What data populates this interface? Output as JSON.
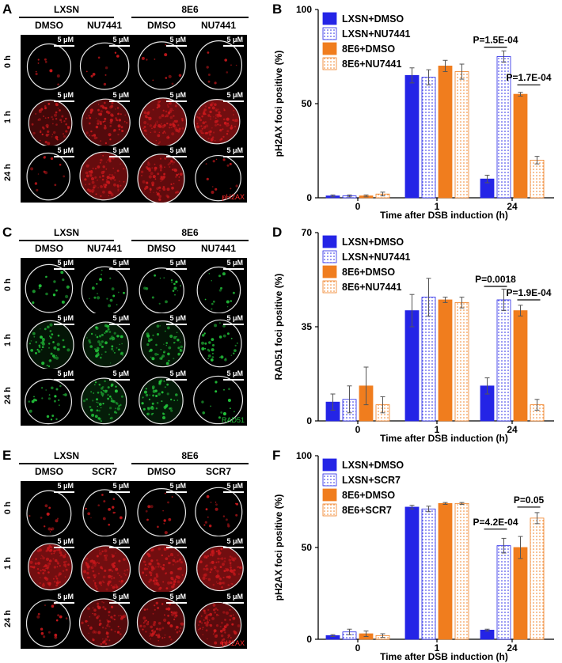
{
  "panels": [
    {
      "letter": "A",
      "groups": [
        "LXSN",
        "8E6"
      ],
      "columns": [
        "DMSO",
        "NU7441",
        "DMSO",
        "NU7441"
      ],
      "rows": [
        "0 h",
        "1 h",
        "24 h"
      ],
      "scale": "5 μM",
      "stain": "pH2AX",
      "stain_color": "#ff2a2a",
      "cell_color": "#c8181c"
    },
    {
      "letter": "C",
      "groups": [
        "LXSN",
        "8E6"
      ],
      "columns": [
        "DMSO",
        "NU7441",
        "DMSO",
        "NU7441"
      ],
      "rows": [
        "0 h",
        "1 h",
        "24 h"
      ],
      "scale": "5 μM",
      "stain": "RAD51",
      "stain_color": "#22c23a",
      "cell_color": "#22c23a"
    },
    {
      "letter": "E",
      "groups": [
        "LXSN",
        "8E6"
      ],
      "columns": [
        "DMSO",
        "SCR7",
        "DMSO",
        "SCR7"
      ],
      "rows": [
        "0 h",
        "1 h",
        "24 h"
      ],
      "scale": "5 μM",
      "stain": "pH2AX",
      "stain_color": "#ff2a2a",
      "cell_color": "#c8181c"
    }
  ],
  "chart_data": [
    {
      "letter": "B",
      "type": "bar",
      "ylabel": "pH2AX foci positive (%)",
      "xlabel": "Time after DSB induction (h)",
      "categories": [
        "0",
        "1",
        "24"
      ],
      "ylim": [
        0,
        100
      ],
      "yticks": [
        0,
        50,
        100
      ],
      "series": [
        {
          "name": "LXSN+DMSO",
          "values": [
            1,
            65,
            10
          ],
          "errors": [
            0.5,
            4,
            2
          ]
        },
        {
          "name": "LXSN+NU7441",
          "values": [
            1,
            64,
            75
          ],
          "errors": [
            0.5,
            4,
            3
          ]
        },
        {
          "name": "8E6+DMSO",
          "values": [
            1,
            70,
            55
          ],
          "errors": [
            0.5,
            3,
            1
          ]
        },
        {
          "name": "8E6+NU7441",
          "values": [
            2,
            67,
            20
          ],
          "errors": [
            1,
            4,
            2
          ]
        }
      ],
      "annotations": [
        {
          "text": "P=1.5E-04",
          "category": "24",
          "from": 0,
          "to": 1,
          "y": 80
        },
        {
          "text": "P=1.7E-04",
          "category": "24",
          "from": 2,
          "to": 3,
          "y": 60
        }
      ]
    },
    {
      "letter": "D",
      "type": "bar",
      "ylabel": "RAD51 foci positive (%)",
      "xlabel": "Time after DSB induction (h)",
      "categories": [
        "0",
        "1",
        "24"
      ],
      "ylim": [
        0,
        70
      ],
      "yticks": [
        0,
        35,
        70
      ],
      "series": [
        {
          "name": "LXSN+DMSO",
          "values": [
            7,
            41,
            13
          ],
          "errors": [
            3,
            6,
            3
          ]
        },
        {
          "name": "LXSN+NU7441",
          "values": [
            8,
            46,
            45
          ],
          "errors": [
            5,
            7,
            4
          ]
        },
        {
          "name": "8E6+DMSO",
          "values": [
            13,
            45,
            41
          ],
          "errors": [
            7,
            1,
            2
          ]
        },
        {
          "name": "8E6+NU7441",
          "values": [
            6,
            44,
            6
          ],
          "errors": [
            3,
            2,
            2
          ]
        }
      ],
      "annotations": [
        {
          "text": "P=0.0018",
          "category": "24",
          "from": 0,
          "to": 1,
          "y": 50
        },
        {
          "text": "P=1.9E-04",
          "category": "24",
          "from": 2,
          "to": 3,
          "y": 45
        }
      ]
    },
    {
      "letter": "F",
      "type": "bar",
      "ylabel": "pH2AX foci positive (%)",
      "xlabel": "Time after DSB induction (h)",
      "categories": [
        "0",
        "1",
        "24"
      ],
      "ylim": [
        0,
        100
      ],
      "yticks": [
        0,
        50,
        100
      ],
      "series": [
        {
          "name": "LXSN+DMSO",
          "values": [
            2,
            72,
            5
          ],
          "errors": [
            0.5,
            1,
            0.5
          ]
        },
        {
          "name": "LXSN+SCR7",
          "values": [
            4,
            71,
            51
          ],
          "errors": [
            1.5,
            1.5,
            4
          ]
        },
        {
          "name": "8E6+DMSO",
          "values": [
            3,
            74,
            50
          ],
          "errors": [
            1.5,
            0.5,
            6
          ]
        },
        {
          "name": "8E6+SCR7",
          "values": [
            2,
            74,
            66
          ],
          "errors": [
            1,
            0.5,
            3
          ]
        }
      ],
      "annotations": [
        {
          "text": "P=4.2E-04",
          "category": "24",
          "from": 0,
          "to": 1,
          "y": 60
        },
        {
          "text": "P=0.05",
          "category": "24",
          "from": 2,
          "to": 3,
          "y": 72
        }
      ]
    }
  ],
  "colors": {
    "lxsn": "#2424e6",
    "e6": "#f07d1e"
  }
}
